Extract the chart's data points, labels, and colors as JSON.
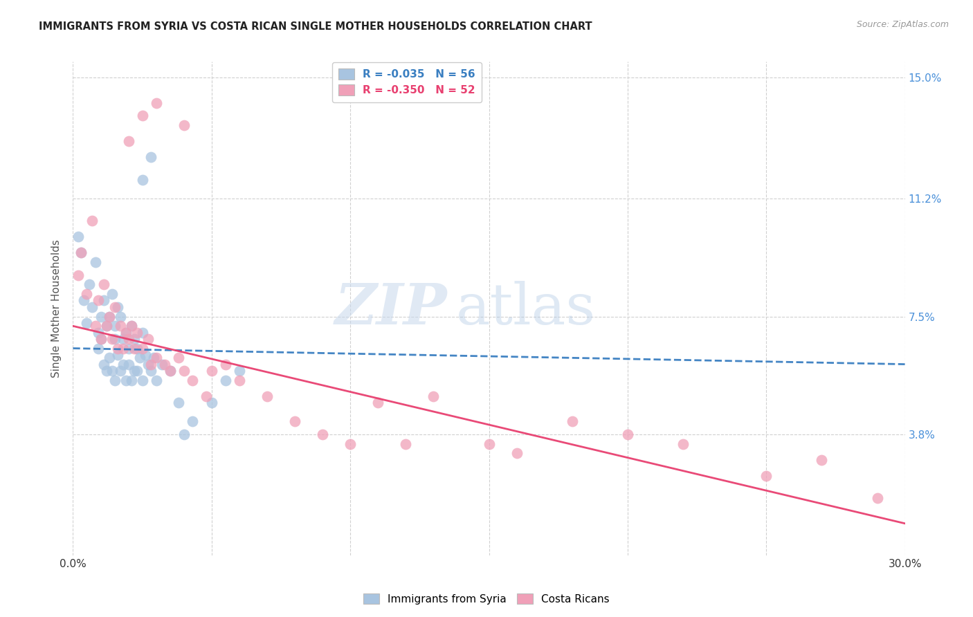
{
  "title": "IMMIGRANTS FROM SYRIA VS COSTA RICAN SINGLE MOTHER HOUSEHOLDS CORRELATION CHART",
  "source": "Source: ZipAtlas.com",
  "ylabel": "Single Mother Households",
  "xlim": [
    0.0,
    0.3
  ],
  "ylim": [
    0.0,
    0.155
  ],
  "yticks": [
    0.038,
    0.075,
    0.112,
    0.15
  ],
  "ytick_labels": [
    "3.8%",
    "7.5%",
    "11.2%",
    "15.0%"
  ],
  "xticks": [
    0.0,
    0.05,
    0.1,
    0.15,
    0.2,
    0.25,
    0.3
  ],
  "background_color": "#ffffff",
  "grid_color": "#d0d0d0",
  "blue_color": "#a8c4e0",
  "pink_color": "#f0a0b8",
  "blue_line_color": "#3a7fc1",
  "pink_line_color": "#e84070",
  "right_axis_color": "#4a90d9",
  "legend_blue_label": "R = -0.035   N = 56",
  "legend_pink_label": "R = -0.350   N = 52",
  "blue_scatter_x": [
    0.002,
    0.003,
    0.004,
    0.005,
    0.006,
    0.007,
    0.008,
    0.009,
    0.009,
    0.01,
    0.01,
    0.011,
    0.011,
    0.012,
    0.012,
    0.013,
    0.013,
    0.014,
    0.014,
    0.015,
    0.015,
    0.015,
    0.016,
    0.016,
    0.017,
    0.017,
    0.018,
    0.018,
    0.019,
    0.019,
    0.02,
    0.02,
    0.021,
    0.021,
    0.022,
    0.022,
    0.023,
    0.023,
    0.024,
    0.025,
    0.025,
    0.026,
    0.027,
    0.028,
    0.029,
    0.03,
    0.032,
    0.035,
    0.038,
    0.04,
    0.043,
    0.05,
    0.055,
    0.06,
    0.025,
    0.028
  ],
  "blue_scatter_y": [
    0.1,
    0.095,
    0.08,
    0.073,
    0.085,
    0.078,
    0.092,
    0.07,
    0.065,
    0.075,
    0.068,
    0.08,
    0.06,
    0.072,
    0.058,
    0.075,
    0.062,
    0.082,
    0.058,
    0.072,
    0.055,
    0.068,
    0.078,
    0.063,
    0.075,
    0.058,
    0.068,
    0.06,
    0.07,
    0.055,
    0.065,
    0.06,
    0.072,
    0.055,
    0.068,
    0.058,
    0.065,
    0.058,
    0.062,
    0.055,
    0.07,
    0.063,
    0.06,
    0.058,
    0.062,
    0.055,
    0.06,
    0.058,
    0.048,
    0.038,
    0.042,
    0.048,
    0.055,
    0.058,
    0.118,
    0.125
  ],
  "pink_scatter_x": [
    0.002,
    0.003,
    0.005,
    0.007,
    0.008,
    0.009,
    0.01,
    0.011,
    0.012,
    0.013,
    0.014,
    0.015,
    0.016,
    0.017,
    0.018,
    0.019,
    0.02,
    0.021,
    0.022,
    0.023,
    0.025,
    0.027,
    0.028,
    0.03,
    0.033,
    0.035,
    0.038,
    0.04,
    0.043,
    0.048,
    0.05,
    0.055,
    0.06,
    0.07,
    0.08,
    0.09,
    0.1,
    0.11,
    0.12,
    0.13,
    0.15,
    0.16,
    0.18,
    0.2,
    0.22,
    0.25,
    0.27,
    0.29,
    0.02,
    0.025,
    0.03,
    0.04
  ],
  "pink_scatter_y": [
    0.088,
    0.095,
    0.082,
    0.105,
    0.072,
    0.08,
    0.068,
    0.085,
    0.072,
    0.075,
    0.068,
    0.078,
    0.065,
    0.072,
    0.065,
    0.07,
    0.068,
    0.072,
    0.065,
    0.07,
    0.065,
    0.068,
    0.06,
    0.062,
    0.06,
    0.058,
    0.062,
    0.058,
    0.055,
    0.05,
    0.058,
    0.06,
    0.055,
    0.05,
    0.042,
    0.038,
    0.035,
    0.048,
    0.035,
    0.05,
    0.035,
    0.032,
    0.042,
    0.038,
    0.035,
    0.025,
    0.03,
    0.018,
    0.13,
    0.138,
    0.142,
    0.135
  ],
  "blue_trend_x": [
    0.0,
    0.3
  ],
  "blue_trend_y": [
    0.065,
    0.06
  ],
  "pink_trend_x": [
    0.0,
    0.3
  ],
  "pink_trend_y": [
    0.072,
    0.01
  ]
}
